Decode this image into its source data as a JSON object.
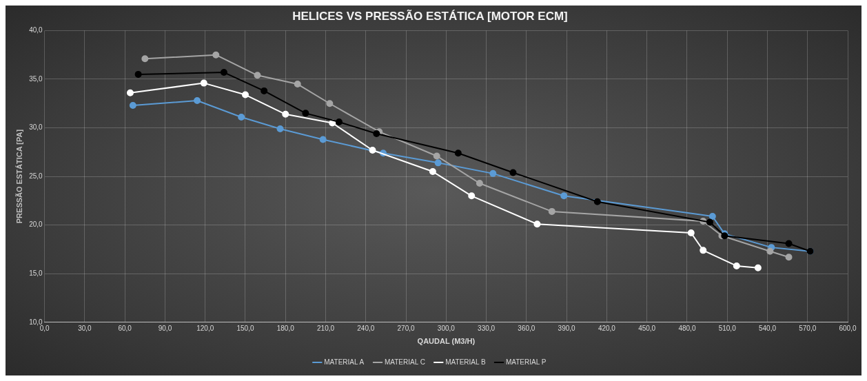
{
  "chart_data": {
    "type": "line",
    "title": "HELICES VS PRESSÃO ESTÁTICA [MOTOR ECM]",
    "xlabel": "QAUDAL (M3/H)",
    "ylabel": "PRESSÃO ESTÁTICA [PA]",
    "xlim": [
      0,
      600
    ],
    "ylim": [
      10,
      40
    ],
    "xticks": [
      {
        "value": 0,
        "label": "0,0"
      },
      {
        "value": 30,
        "label": "30,0"
      },
      {
        "value": 60,
        "label": "60,0"
      },
      {
        "value": 90,
        "label": "90,0"
      },
      {
        "value": 120,
        "label": "120,0"
      },
      {
        "value": 150,
        "label": "150,0"
      },
      {
        "value": 180,
        "label": "180,0"
      },
      {
        "value": 210,
        "label": "210,0"
      },
      {
        "value": 240,
        "label": "240,0"
      },
      {
        "value": 270,
        "label": "270,0"
      },
      {
        "value": 300,
        "label": "300,0"
      },
      {
        "value": 330,
        "label": "330,0"
      },
      {
        "value": 360,
        "label": "360,0"
      },
      {
        "value": 390,
        "label": "390,0"
      },
      {
        "value": 420,
        "label": "420,0"
      },
      {
        "value": 450,
        "label": "450,0"
      },
      {
        "value": 480,
        "label": "480,0"
      },
      {
        "value": 510,
        "label": "510,0"
      },
      {
        "value": 540,
        "label": "540,0"
      },
      {
        "value": 570,
        "label": "570,0"
      },
      {
        "value": 600,
        "label": "600,0"
      }
    ],
    "yticks": [
      {
        "value": 10,
        "label": "10,0"
      },
      {
        "value": 15,
        "label": "15,0"
      },
      {
        "value": 20,
        "label": "20,0"
      },
      {
        "value": 25,
        "label": "25,0"
      },
      {
        "value": 30,
        "label": "30,0"
      },
      {
        "value": 35,
        "label": "35,0"
      },
      {
        "value": 40,
        "label": "40,0"
      }
    ],
    "grid": true,
    "legend": "bottom",
    "marker": "circle",
    "line_style": "solid",
    "series": [
      {
        "name": "MATERIAL A",
        "color": "#5b9bd5",
        "x": [
          66,
          114,
          147,
          176,
          208,
          253,
          294,
          335,
          388,
          499,
          508,
          543,
          572
        ],
        "values": [
          32.3,
          32.8,
          31.1,
          29.9,
          28.8,
          27.4,
          26.4,
          25.3,
          23.0,
          20.9,
          19.1,
          17.7,
          17.3
        ]
      },
      {
        "name": "MATERIAL C",
        "color": "#a5a5a5",
        "x": [
          75,
          128,
          159,
          189,
          213,
          250,
          293,
          325,
          379,
          492,
          506,
          542,
          556
        ],
        "values": [
          37.1,
          37.5,
          35.4,
          34.5,
          32.5,
          29.6,
          27.1,
          24.3,
          21.4,
          20.4,
          18.9,
          17.3,
          16.7
        ]
      },
      {
        "name": "MATERIAL B",
        "color": "#ffffff",
        "x": [
          64,
          119,
          150,
          180,
          215,
          245,
          290,
          319,
          368,
          483,
          492,
          517,
          533
        ],
        "values": [
          33.6,
          34.6,
          33.4,
          31.4,
          30.5,
          27.7,
          25.5,
          23.0,
          20.1,
          19.2,
          17.4,
          15.8,
          15.6
        ]
      },
      {
        "name": "MATERIAL P",
        "color": "#000000",
        "x": [
          70,
          134,
          164,
          195,
          220,
          248,
          309,
          350,
          413,
          497,
          508,
          556,
          572
        ],
        "values": [
          35.5,
          35.7,
          33.8,
          31.5,
          30.6,
          29.4,
          27.4,
          25.4,
          22.4,
          20.3,
          18.9,
          18.1,
          17.3
        ]
      }
    ]
  }
}
